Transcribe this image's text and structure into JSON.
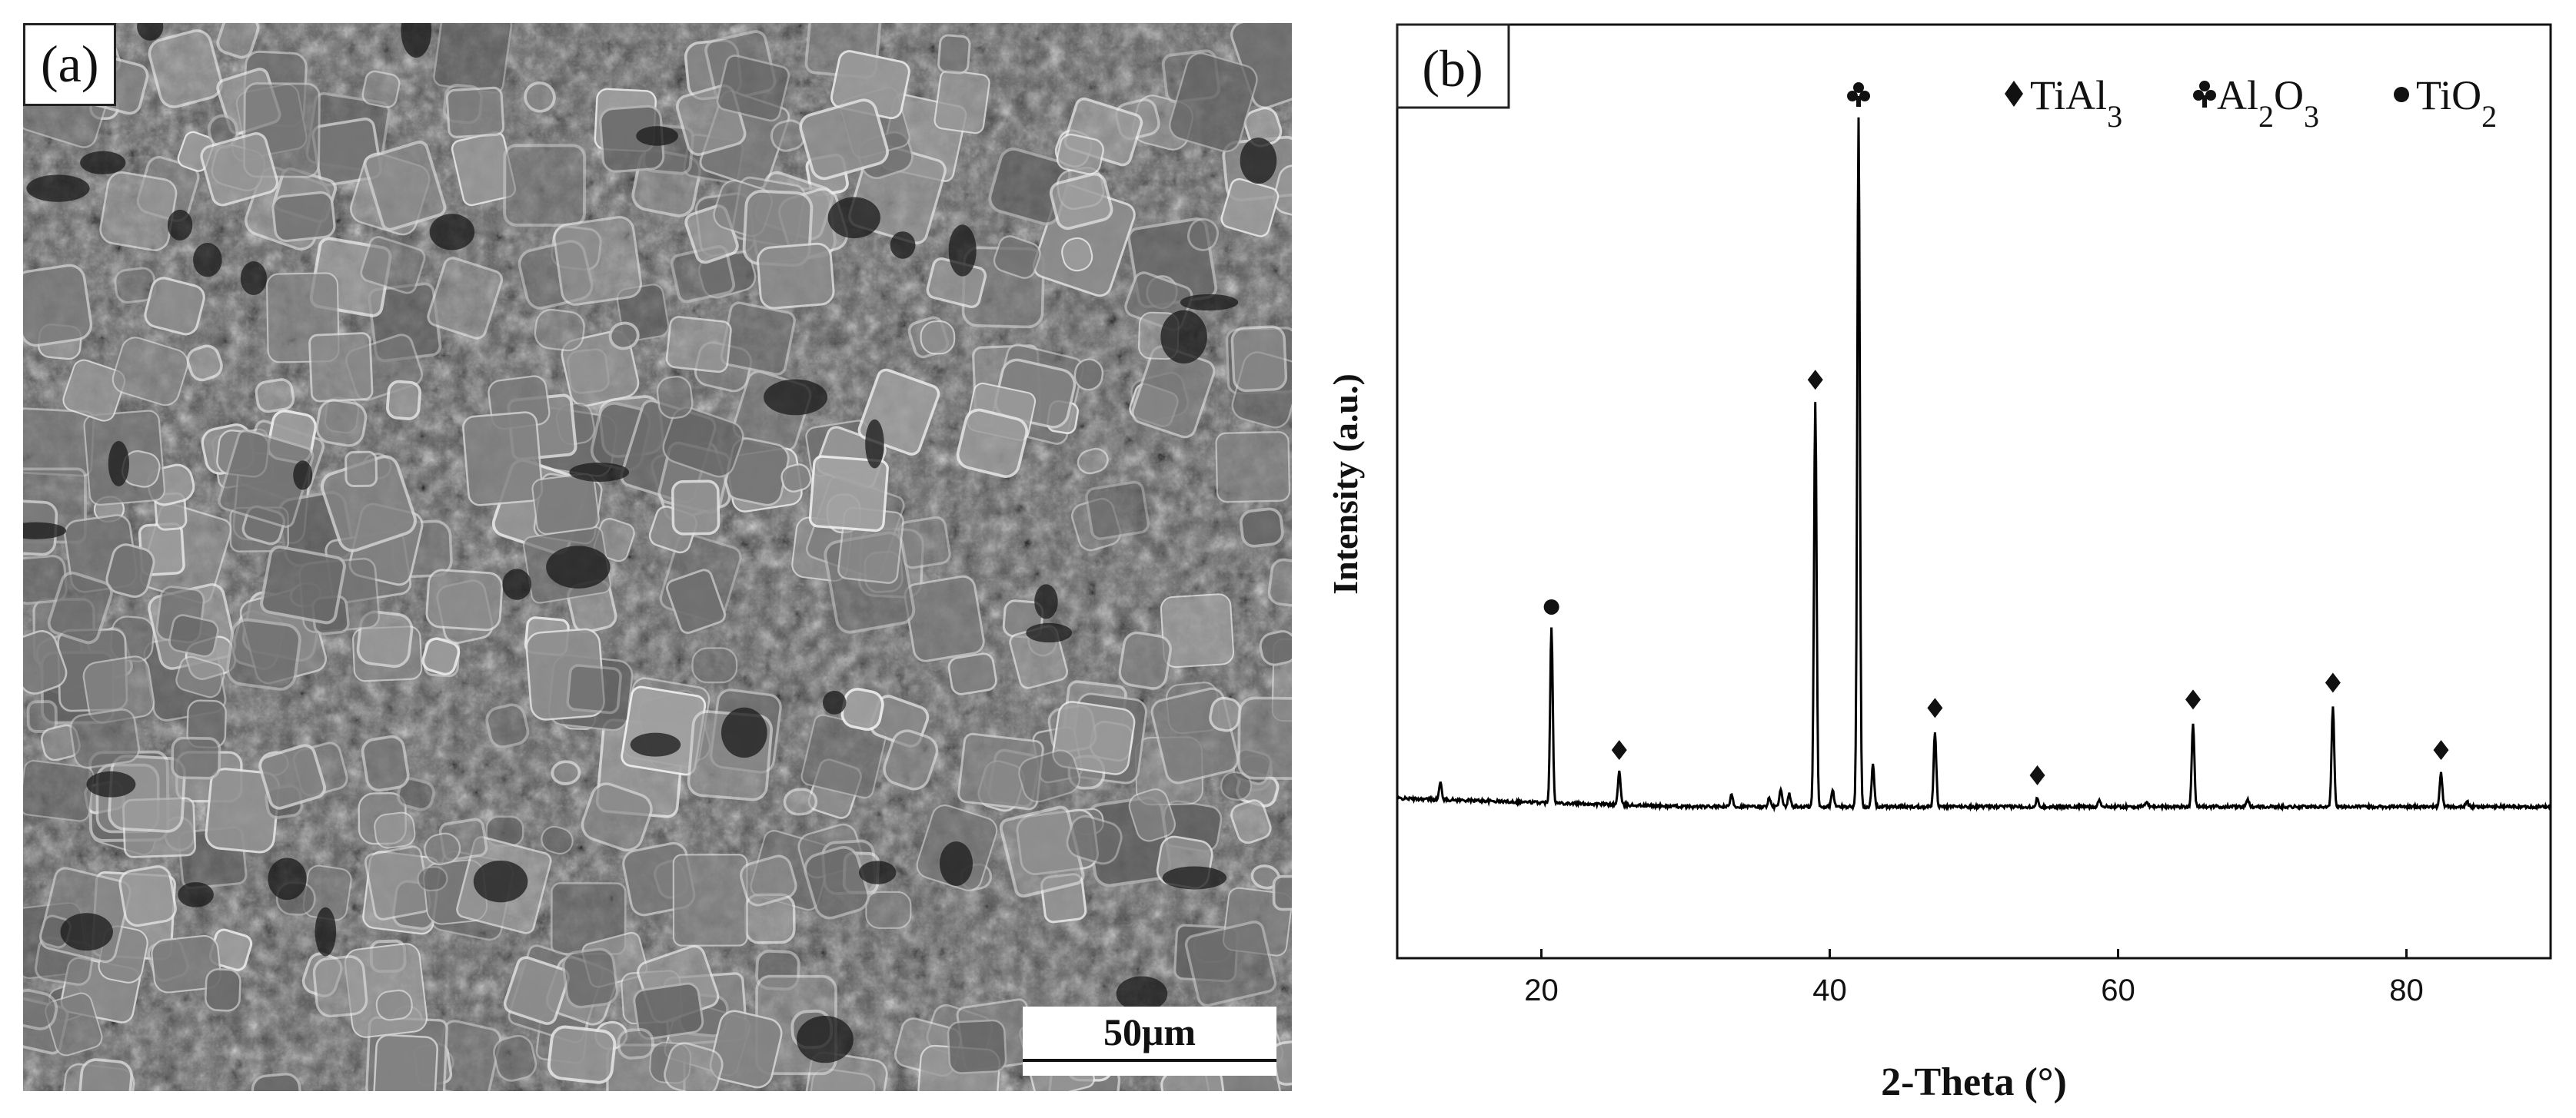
{
  "panel_a": {
    "label": "(a)",
    "scale_bar": "50μm"
  },
  "panel_b": {
    "label": "(b)",
    "legend": {
      "tial3": "TiAl3",
      "al2o3": "Al2O3",
      "tio2": "TiO2"
    }
  },
  "chart_data": {
    "type": "line",
    "title": "",
    "xlabel": "2-Theta (°)",
    "ylabel": "Intensity (a.u.)",
    "xlim": [
      10,
      90
    ],
    "ylim": [
      0,
      100
    ],
    "xticks": [
      20,
      40,
      60,
      80
    ],
    "grid": false,
    "legend_position": "top-right",
    "baseline": 18,
    "series": [
      {
        "name": "",
        "peaks": [
          {
            "x": 20.7,
            "y": 39
          },
          {
            "x": 25.4,
            "y": 22
          },
          {
            "x": 39.0,
            "y": 66
          },
          {
            "x": 42.0,
            "y": 100
          },
          {
            "x": 47.3,
            "y": 27
          },
          {
            "x": 54.4,
            "y": 19
          },
          {
            "x": 65.2,
            "y": 28
          },
          {
            "x": 74.9,
            "y": 30
          },
          {
            "x": 82.4,
            "y": 22
          }
        ]
      }
    ],
    "peak_markers": [
      {
        "x": 20.7,
        "phase": "TiO2",
        "symbol": "circle"
      },
      {
        "x": 25.4,
        "phase": "TiAl3",
        "symbol": "diamond"
      },
      {
        "x": 39.0,
        "phase": "TiAl3",
        "symbol": "diamond"
      },
      {
        "x": 42.0,
        "phase": "Al2O3",
        "symbol": "club"
      },
      {
        "x": 47.3,
        "phase": "TiAl3",
        "symbol": "diamond"
      },
      {
        "x": 54.4,
        "phase": "TiAl3",
        "symbol": "diamond"
      },
      {
        "x": 65.2,
        "phase": "TiAl3",
        "symbol": "diamond"
      },
      {
        "x": 74.9,
        "phase": "TiAl3",
        "symbol": "diamond"
      },
      {
        "x": 82.4,
        "phase": "TiAl3",
        "symbol": "diamond"
      }
    ]
  },
  "colors": {
    "line": "#000000",
    "sem_background": "#5a5a5a"
  }
}
